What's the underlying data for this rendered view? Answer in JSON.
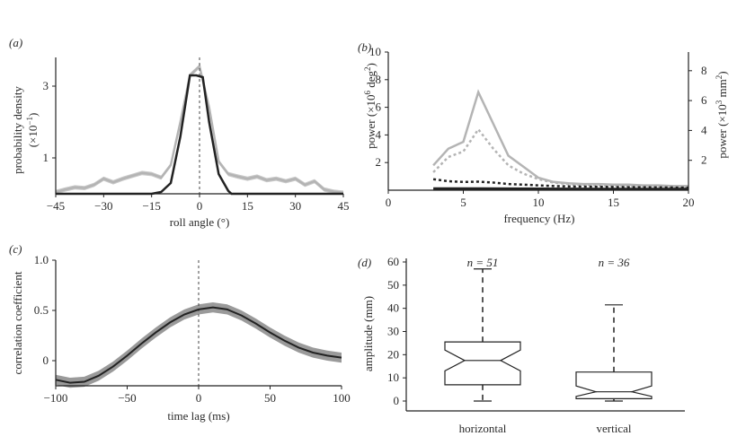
{
  "chart_data": [
    {
      "panel": "(a)",
      "type": "line",
      "xlabel": "roll angle (°)",
      "ylabel": "probability density",
      "ylabel_unit": "(×10",
      "ylabel_unit_exp": "−1",
      "ylabel_unit_end": ")",
      "xlim": [
        -45,
        45
      ],
      "ylim": [
        0,
        3.8
      ],
      "xticks": [
        "−45",
        "−30",
        "−15",
        "0",
        "15",
        "30",
        "45"
      ],
      "xtick_values": [
        -45,
        -30,
        -15,
        0,
        15,
        30,
        45
      ],
      "yticks": [
        "1",
        "3"
      ],
      "ytick_values": [
        1,
        3
      ],
      "colors": {
        "series_dark": "#222222",
        "series_light": "#b4b4b4",
        "band": "#c9c9c9"
      },
      "series": [
        {
          "style": "light",
          "x": [
            -45,
            -42,
            -39,
            -36,
            -33,
            -30,
            -27,
            -24,
            -21,
            -18,
            -15,
            -12,
            -9,
            -6,
            -3,
            0,
            3,
            6,
            9,
            12,
            15,
            18,
            21,
            24,
            27,
            30,
            33,
            36,
            39,
            42,
            45
          ],
          "y": [
            0.05,
            0.12,
            0.18,
            0.16,
            0.25,
            0.42,
            0.32,
            0.42,
            0.5,
            0.58,
            0.55,
            0.45,
            0.8,
            2.0,
            3.3,
            3.55,
            2.4,
            0.9,
            0.55,
            0.48,
            0.42,
            0.48,
            0.38,
            0.42,
            0.35,
            0.42,
            0.25,
            0.35,
            0.12,
            0.06,
            0.03
          ]
        },
        {
          "style": "dark",
          "x": [
            -45,
            -15,
            -12,
            -9,
            -6,
            -3,
            -1,
            1,
            3,
            6,
            9,
            10,
            45
          ],
          "y": [
            0,
            0,
            0.05,
            0.3,
            1.6,
            3.3,
            3.3,
            3.25,
            2.0,
            0.55,
            0.08,
            0,
            0
          ]
        }
      ]
    },
    {
      "panel": "(b)",
      "type": "line",
      "xlabel": "frequency (Hz)",
      "ylabel_left": "power (×10",
      "ylabel_left_exp1": "6",
      "ylabel_left_mid": " deg",
      "ylabel_left_exp2": "2",
      "ylabel_left_end": ")",
      "ylabel_right": "power (×10",
      "ylabel_right_exp1": "3",
      "ylabel_right_mid": " mm",
      "ylabel_right_exp2": "2",
      "ylabel_right_end": ")",
      "xlim": [
        0,
        20
      ],
      "ylim_left": [
        0,
        10
      ],
      "ylim_right": [
        0,
        9.25
      ],
      "xticks": [
        "0",
        "5",
        "10",
        "15",
        "20"
      ],
      "xtick_values": [
        0,
        5,
        10,
        15,
        20
      ],
      "yticks_left": [
        "2",
        "4",
        "6",
        "8",
        "10"
      ],
      "ytick_left_values": [
        2,
        4,
        6,
        8,
        10
      ],
      "yticks_right": [
        "2",
        "4",
        "6",
        "8"
      ],
      "ytick_right_values": [
        2,
        4,
        6,
        8
      ],
      "colors": {
        "light": "#b4b4b4",
        "dark": "#222222"
      },
      "series": [
        {
          "style": "light-solid",
          "axis": "left",
          "x": [
            3,
            4,
            5,
            6,
            7,
            8,
            9,
            10,
            11,
            12,
            13,
            14,
            15,
            16,
            17,
            18,
            19,
            20
          ],
          "y": [
            1.8,
            3.0,
            3.5,
            7.1,
            4.8,
            2.5,
            1.7,
            0.9,
            0.6,
            0.5,
            0.45,
            0.45,
            0.4,
            0.4,
            0.35,
            0.35,
            0.3,
            0.3
          ]
        },
        {
          "style": "light-dotted",
          "axis": "left",
          "x": [
            3,
            4,
            5,
            6,
            7,
            8,
            9,
            10,
            11,
            12,
            13,
            14,
            15,
            16,
            17,
            18,
            19,
            20
          ],
          "y": [
            1.3,
            2.4,
            2.8,
            4.4,
            3.0,
            1.8,
            1.2,
            0.8,
            0.55,
            0.45,
            0.4,
            0.35,
            0.35,
            0.3,
            0.3,
            0.3,
            0.25,
            0.2
          ]
        },
        {
          "style": "dark-dotted",
          "axis": "left",
          "x": [
            3,
            4,
            5,
            6,
            7,
            8,
            9,
            10,
            11,
            12,
            14,
            16,
            18,
            20
          ],
          "y": [
            0.8,
            0.65,
            0.6,
            0.62,
            0.55,
            0.45,
            0.4,
            0.35,
            0.3,
            0.28,
            0.25,
            0.22,
            0.2,
            0.18
          ]
        },
        {
          "style": "dark-solid",
          "axis": "left",
          "x": [
            3,
            6,
            10,
            15,
            20
          ],
          "y": [
            0.12,
            0.12,
            0.1,
            0.08,
            0.08
          ]
        }
      ]
    },
    {
      "panel": "(c)",
      "type": "line",
      "xlabel": "time lag (ms)",
      "ylabel": "correlation coefficient",
      "xlim": [
        -100,
        100
      ],
      "ylim": [
        -0.25,
        1.0
      ],
      "xticks": [
        "−100",
        "−50",
        "0",
        "50",
        "100"
      ],
      "xtick_values": [
        -100,
        -50,
        0,
        50,
        100
      ],
      "yticks": [
        "0",
        "0.5",
        "1.0"
      ],
      "ytick_values": [
        0,
        0.5,
        1.0
      ],
      "colors": {
        "line": "#222222",
        "band": "#9a9a9a"
      },
      "series": [
        {
          "style": "dark-with-band",
          "x": [
            -100,
            -90,
            -80,
            -70,
            -60,
            -50,
            -40,
            -30,
            -20,
            -10,
            0,
            10,
            20,
            30,
            40,
            50,
            60,
            70,
            80,
            90,
            100
          ],
          "y": [
            -0.19,
            -0.22,
            -0.21,
            -0.15,
            -0.06,
            0.05,
            0.17,
            0.28,
            0.38,
            0.46,
            0.51,
            0.53,
            0.51,
            0.45,
            0.37,
            0.28,
            0.2,
            0.13,
            0.08,
            0.05,
            0.03
          ]
        }
      ]
    },
    {
      "panel": "d",
      "type": "box",
      "ylabel": "amplitude (mm)",
      "ylim": [
        0,
        60
      ],
      "yticks": [
        "0",
        "10",
        "20",
        "30",
        "40",
        "50",
        "60"
      ],
      "ytick_values": [
        0,
        10,
        20,
        30,
        40,
        50,
        60
      ],
      "categories": [
        "horizontal",
        "vertical"
      ],
      "n_labels": [
        "n = 51",
        "n = 36"
      ],
      "boxes": [
        {
          "min": 0,
          "q1": 7,
          "median": 17.5,
          "q3": 25.5,
          "max": 57,
          "notch_low": 13,
          "notch_high": 22
        },
        {
          "min": 0,
          "q1": 1,
          "median": 4,
          "q3": 12.5,
          "max": 41.5,
          "notch_low": 2,
          "notch_high": 6.5
        }
      ]
    }
  ]
}
